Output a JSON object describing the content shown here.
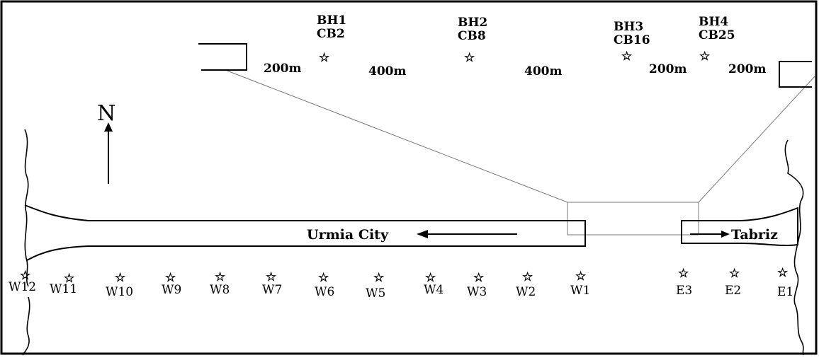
{
  "north_label": "N",
  "city_west": "Urmia City",
  "city_east": "Tabriz",
  "boreholes": [
    {
      "bh": "BH1",
      "cb": "CB2"
    },
    {
      "bh": "BH2",
      "cb": "CB8"
    },
    {
      "bh": "BH3",
      "cb": "CB16"
    },
    {
      "bh": "BH4",
      "cb": "CB25"
    }
  ],
  "distances": [
    "200m",
    "400m",
    "400m",
    "200m",
    "200m"
  ],
  "stations_west": [
    "W12",
    "W11",
    "W10",
    "W9",
    "W8",
    "W7",
    "W6",
    "W5",
    "W4",
    "W3",
    "W2",
    "W1"
  ],
  "stations_east": [
    "E3",
    "E2",
    "E1"
  ]
}
